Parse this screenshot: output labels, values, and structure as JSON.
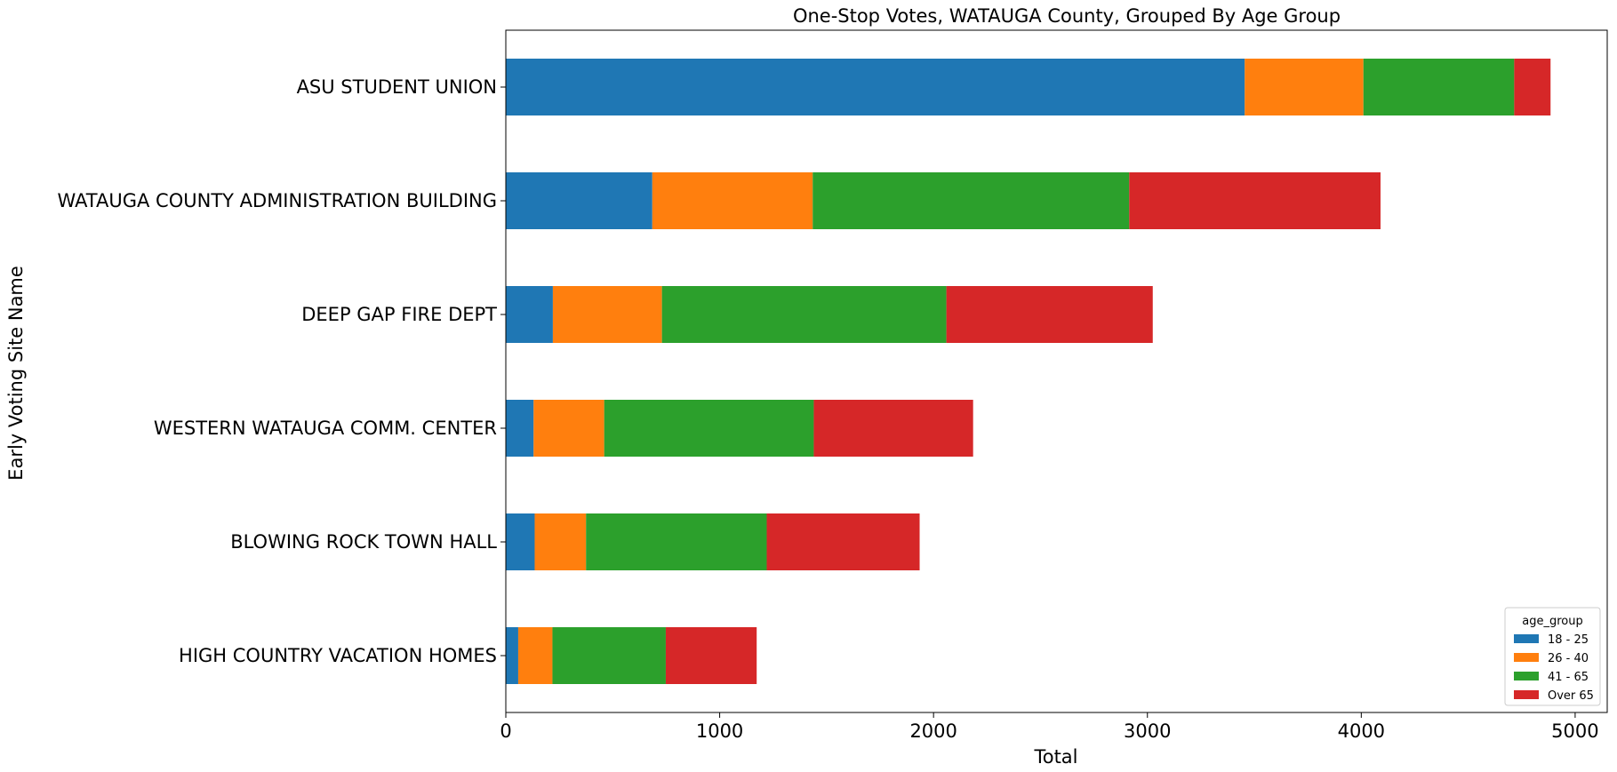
{
  "chart_data": {
    "type": "bar",
    "orientation": "horizontal",
    "stacked": true,
    "title": "One-Stop Votes, WATAUGA County, Grouped By Age Group",
    "xlabel": "Total",
    "ylabel": "Early Voting Site Name",
    "xlim": [
      0,
      5150
    ],
    "xticks": [
      0,
      1000,
      2000,
      3000,
      4000,
      5000
    ],
    "xtick_labels": [
      "0",
      "1000",
      "2000",
      "3000",
      "4000",
      "5000"
    ],
    "grid": false,
    "categories": [
      "ASU STUDENT UNION",
      "WATAUGA COUNTY ADMINISTRATION BUILDING",
      "DEEP GAP FIRE DEPT",
      "WESTERN WATAUGA COMM. CENTER",
      "BLOWING ROCK TOWN HALL",
      "HIGH COUNTRY VACATION HOMES"
    ],
    "series": [
      {
        "name": "18 - 25",
        "color": "#1f77b4",
        "values": [
          3455,
          685,
          220,
          130,
          135,
          58
        ]
      },
      {
        "name": "26 - 40",
        "color": "#ff7f0e",
        "values": [
          555,
          750,
          510,
          330,
          240,
          160
        ]
      },
      {
        "name": "41 - 65",
        "color": "#2ca02c",
        "values": [
          705,
          1480,
          1330,
          980,
          845,
          530
        ]
      },
      {
        "name": "Over 65",
        "color": "#d62728",
        "values": [
          170,
          1175,
          965,
          745,
          715,
          425
        ]
      }
    ],
    "legend": {
      "title": "age_group",
      "placement": "bottom-right"
    }
  }
}
